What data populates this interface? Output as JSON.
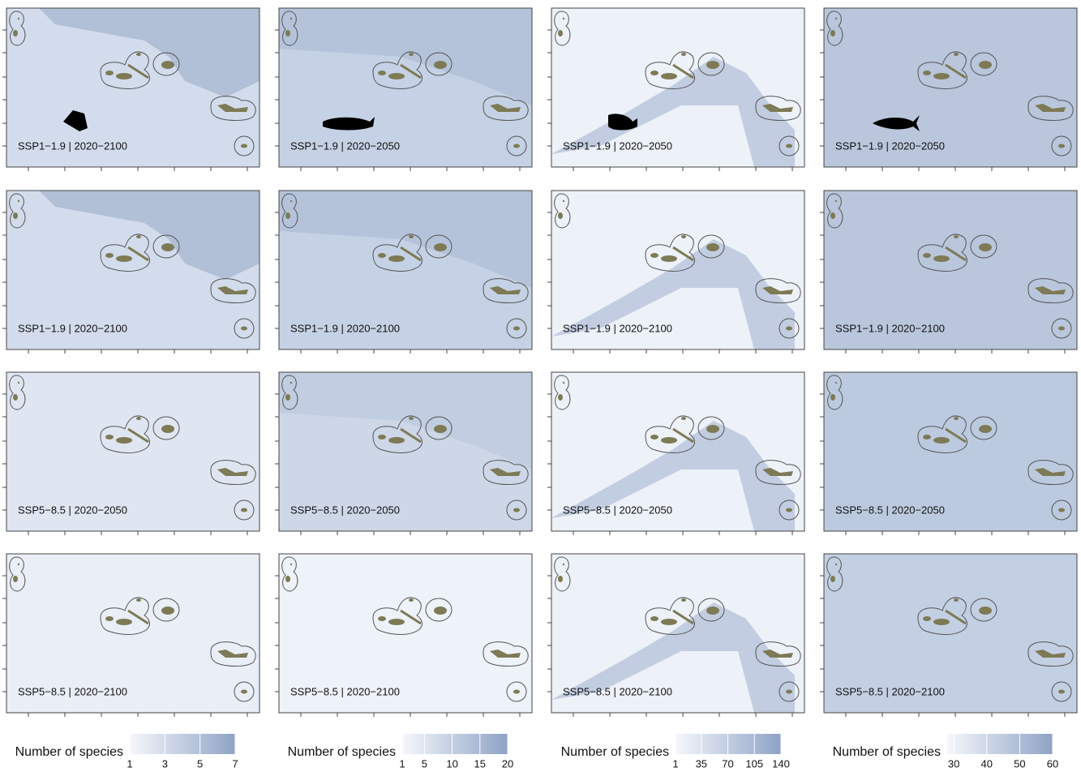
{
  "panels": [
    [
      "SSP1−1.9 | 2020−2100",
      "SSP1−1.9 | 2020−2050",
      "SSP1−1.9 | 2020−2050",
      "SSP1−1.9 | 2020−2050"
    ],
    [
      "SSP1−1.9 | 2020−2100",
      "SSP1−1.9 | 2020−2100",
      "SSP1−1.9 | 2020−2100",
      "SSP1−1.9 | 2020−2100"
    ],
    [
      "SSP5−8.5 | 2020−2050",
      "SSP5−8.5 | 2020−2050",
      "SSP5−8.5 | 2020−2050",
      "SSP5−8.5 | 2020−2050"
    ],
    [
      "SSP5−8.5 | 2020−2100",
      "SSP5−8.5 | 2020−2100",
      "SSP5−8.5 | 2020−2100",
      "SSP5−8.5 | 2020−2100"
    ]
  ],
  "legends": [
    {
      "title": "Number of species",
      "lim": [
        1,
        7
      ],
      "ticks": [
        1,
        3,
        5,
        7
      ]
    },
    {
      "title": "Number of species",
      "lim": [
        1,
        20
      ],
      "ticks": [
        1,
        5,
        10,
        15,
        20
      ]
    },
    {
      "title": "Number of species",
      "lim": [
        1,
        140
      ],
      "ticks": [
        1,
        35,
        70,
        105,
        140
      ]
    },
    {
      "title": "Number of species",
      "lim": [
        28,
        60
      ],
      "ticks": [
        30,
        40,
        50,
        60
      ]
    }
  ]
}
